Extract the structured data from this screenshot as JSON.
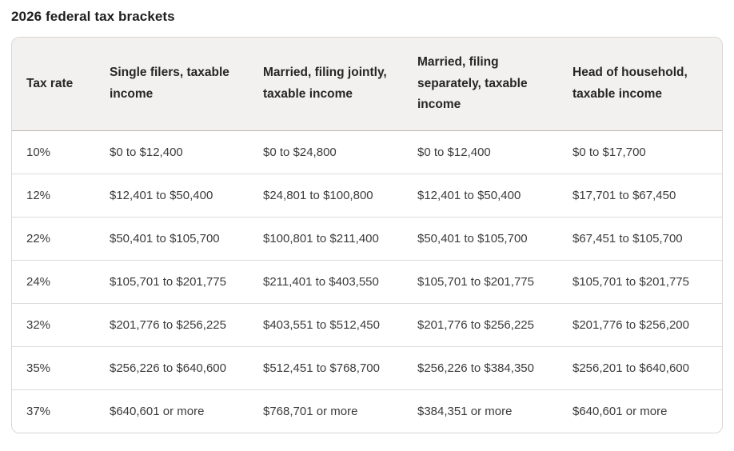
{
  "page": {
    "title": "2026 federal tax brackets"
  },
  "chart_data": {
    "type": "table",
    "title": "2026 federal tax brackets",
    "columns": [
      "Tax rate",
      "Single filers, taxable income",
      "Married, filing jointly, taxable income",
      "Married, filing separately, taxable income",
      "Head of household, taxable income"
    ],
    "rows": [
      [
        "10%",
        "$0 to $12,400",
        "$0 to $24,800",
        "$0 to $12,400",
        "$0 to $17,700"
      ],
      [
        "12%",
        "$12,401 to $50,400",
        "$24,801 to $100,800",
        "$12,401 to $50,400",
        "$17,701 to $67,450"
      ],
      [
        "22%",
        "$50,401 to $105,700",
        "$100,801 to $211,400",
        "$50,401 to $105,700",
        "$67,451 to $105,700"
      ],
      [
        "24%",
        "$105,701 to $201,775",
        "$211,401 to $403,550",
        "$105,701 to $201,775",
        "$105,701 to $201,775"
      ],
      [
        "32%",
        "$201,776 to $256,225",
        "$403,551 to $512,450",
        "$201,776 to $256,225",
        "$201,776 to $256,200"
      ],
      [
        "35%",
        "$256,226 to $640,600",
        "$512,451 to $768,700",
        "$256,226 to $384,350",
        "$256,201 to $640,600"
      ],
      [
        "37%",
        "$640,601 or more",
        "$768,701 or more",
        "$384,351 or more",
        "$640,601 or more"
      ]
    ],
    "legend_position": "none",
    "grid": "horizontal-row-dividers-only"
  },
  "colors": {
    "page_bg": "#ffffff",
    "header_bg": "#f2f1ef",
    "outer_border": "#d8d7d5",
    "header_divider": "#b7b6b4",
    "row_divider": "#dddcda",
    "title_text": "#1e1e1e",
    "header_text": "#262626",
    "cell_text": "#3b3b3b"
  }
}
